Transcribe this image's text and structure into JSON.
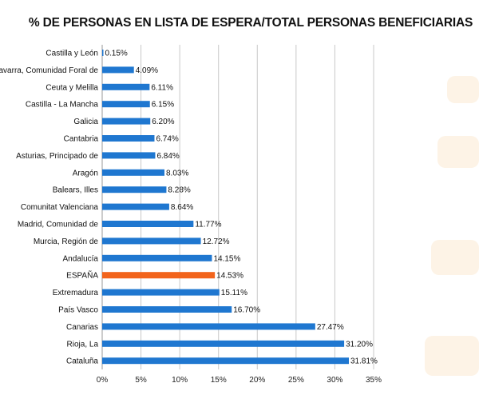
{
  "chart_data": {
    "type": "bar",
    "orientation": "horizontal",
    "title": "% DE PERSONAS EN LISTA DE ESPERA/TOTAL PERSONAS BENEFICIARIAS",
    "xlabel": "",
    "ylabel": "",
    "xlim": [
      0,
      35
    ],
    "x_ticks": [
      "0%",
      "5%",
      "10%",
      "15%",
      "20%",
      "25%",
      "30%",
      "35%"
    ],
    "x_tick_values": [
      0,
      5,
      10,
      15,
      20,
      25,
      30,
      35
    ],
    "grid": "vertical",
    "categories": [
      "Castilla y León",
      "Navarra, Comunidad Foral de",
      "Ceuta y Melilla",
      "Castilla - La Mancha",
      "Galicia",
      "Cantabria",
      "Asturias, Principado de",
      "Aragón",
      "Balears, Illes",
      "Comunitat Valenciana",
      "Madrid, Comunidad de",
      "Murcia, Región de",
      "Andalucía",
      "ESPAÑA",
      "Extremadura",
      "País Vasco",
      "Canarias",
      "Rioja, La",
      "Cataluña"
    ],
    "values": [
      0.15,
      4.09,
      6.11,
      6.15,
      6.2,
      6.74,
      6.84,
      8.03,
      8.28,
      8.64,
      11.77,
      12.72,
      14.15,
      14.53,
      15.11,
      16.7,
      27.47,
      31.2,
      31.81
    ],
    "value_labels": [
      "0.15%",
      "4.09%",
      "6.11%",
      "6.15%",
      "6.20%",
      "6.74%",
      "6.84%",
      "8.03%",
      "8.28%",
      "8.64%",
      "11.77%",
      "12.72%",
      "14.15%",
      "14.53%",
      "15.11%",
      "16.70%",
      "27.47%",
      "31.20%",
      "31.81%"
    ],
    "bar_color": "#1f77d0",
    "highlight_category": "ESPAÑA",
    "highlight_color": "#f2641c"
  }
}
